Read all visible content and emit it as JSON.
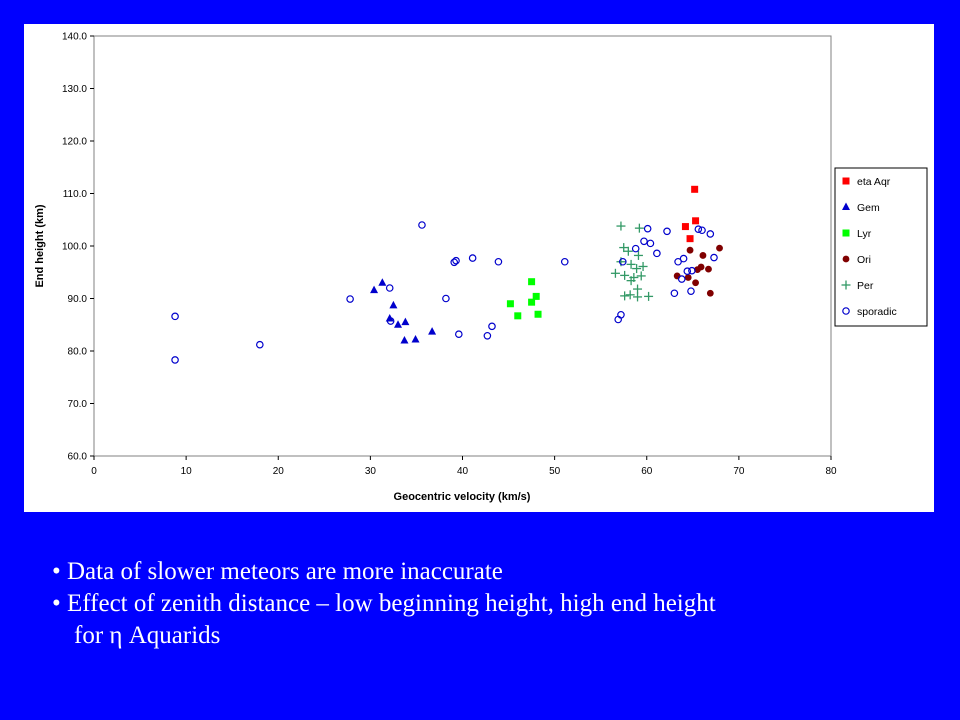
{
  "colors": {
    "background": "#0000FF",
    "panel": "#FFFFFF",
    "text": "#FFFFFF"
  },
  "chart_data": {
    "type": "scatter",
    "title": "",
    "xlabel": "Geocentric velocity (km/s)",
    "ylabel": "End height (km)",
    "xlim": [
      0,
      80
    ],
    "ylim": [
      60,
      140
    ],
    "xticks": [
      "0",
      "10",
      "20",
      "30",
      "40",
      "50",
      "60",
      "70",
      "80"
    ],
    "yticks": [
      "60.0",
      "70.0",
      "80.0",
      "90.0",
      "100.0",
      "110.0",
      "120.0",
      "130.0",
      "140.0"
    ],
    "grid": false,
    "legend_position": "right",
    "series": [
      {
        "name": "eta Aqr",
        "marker": "square",
        "color": "#FF0000",
        "points": [
          [
            65.2,
            110.8
          ],
          [
            64.2,
            103.7
          ],
          [
            65.3,
            104.8
          ],
          [
            64.7,
            101.4
          ]
        ]
      },
      {
        "name": "Gem",
        "marker": "triangle",
        "color": "#0000CC",
        "points": [
          [
            31.3,
            93.0
          ],
          [
            30.4,
            91.6
          ],
          [
            32.5,
            88.7
          ],
          [
            32.1,
            86.2
          ],
          [
            33.0,
            85.0
          ],
          [
            33.8,
            85.5
          ],
          [
            36.7,
            83.7
          ],
          [
            33.7,
            82.0
          ],
          [
            34.9,
            82.2
          ]
        ]
      },
      {
        "name": "Lyr",
        "marker": "square",
        "color": "#00FF00",
        "points": [
          [
            47.5,
            93.2
          ],
          [
            48.0,
            90.4
          ],
          [
            45.2,
            89.0
          ],
          [
            47.5,
            89.3
          ],
          [
            46.0,
            86.7
          ],
          [
            48.2,
            87.0
          ]
        ]
      },
      {
        "name": "Ori",
        "marker": "circle-filled",
        "color": "#800000",
        "points": [
          [
            67.9,
            99.6
          ],
          [
            64.7,
            99.2
          ],
          [
            66.1,
            98.2
          ],
          [
            63.3,
            94.3
          ],
          [
            64.5,
            94.0
          ],
          [
            65.5,
            95.5
          ],
          [
            65.9,
            96.0
          ],
          [
            66.7,
            95.6
          ],
          [
            65.3,
            93.0
          ],
          [
            66.9,
            91.0
          ]
        ]
      },
      {
        "name": "Per",
        "marker": "plus",
        "color": "#339966",
        "points": [
          [
            57.2,
            103.8
          ],
          [
            59.2,
            103.4
          ],
          [
            57.5,
            99.7
          ],
          [
            58.0,
            99.0
          ],
          [
            59.1,
            98.2
          ],
          [
            57.2,
            97.0
          ],
          [
            58.3,
            96.5
          ],
          [
            58.9,
            95.7
          ],
          [
            59.6,
            96.1
          ],
          [
            56.6,
            94.8
          ],
          [
            57.6,
            94.4
          ],
          [
            58.6,
            94.0
          ],
          [
            59.4,
            94.3
          ],
          [
            58.3,
            93.4
          ],
          [
            59.0,
            91.8
          ],
          [
            57.6,
            90.5
          ],
          [
            58.2,
            90.7
          ],
          [
            59.0,
            90.3
          ],
          [
            60.2,
            90.4
          ]
        ]
      },
      {
        "name": "sporadic",
        "marker": "circle-open",
        "color": "#0000CC",
        "points": [
          [
            8.8,
            86.6
          ],
          [
            8.8,
            78.3
          ],
          [
            18.0,
            81.2
          ],
          [
            27.8,
            89.9
          ],
          [
            32.1,
            92.0
          ],
          [
            32.2,
            85.7
          ],
          [
            35.6,
            104.0
          ],
          [
            38.2,
            90.0
          ],
          [
            39.1,
            96.9
          ],
          [
            39.3,
            97.2
          ],
          [
            39.6,
            83.2
          ],
          [
            41.1,
            97.7
          ],
          [
            42.7,
            82.9
          ],
          [
            43.2,
            84.7
          ],
          [
            43.9,
            97.0
          ],
          [
            51.1,
            97.0
          ],
          [
            56.9,
            86.0
          ],
          [
            57.2,
            86.9
          ],
          [
            57.4,
            97.0
          ],
          [
            58.8,
            99.5
          ],
          [
            59.7,
            100.9
          ],
          [
            60.1,
            103.3
          ],
          [
            60.4,
            100.5
          ],
          [
            61.1,
            98.6
          ],
          [
            62.2,
            102.8
          ],
          [
            63.0,
            91.0
          ],
          [
            63.4,
            97.0
          ],
          [
            63.8,
            93.7
          ],
          [
            64.0,
            97.6
          ],
          [
            64.4,
            95.2
          ],
          [
            64.9,
            95.3
          ],
          [
            64.8,
            91.4
          ],
          [
            65.6,
            103.2
          ],
          [
            66.0,
            103.0
          ],
          [
            66.9,
            102.3
          ],
          [
            67.3,
            97.8
          ]
        ]
      }
    ]
  },
  "bullets": {
    "line1": "• Data of slower meteors are more inaccurate",
    "line2": "• Effect of zenith distance – low beginning height, high end height",
    "line3": "for η Aquarids"
  }
}
